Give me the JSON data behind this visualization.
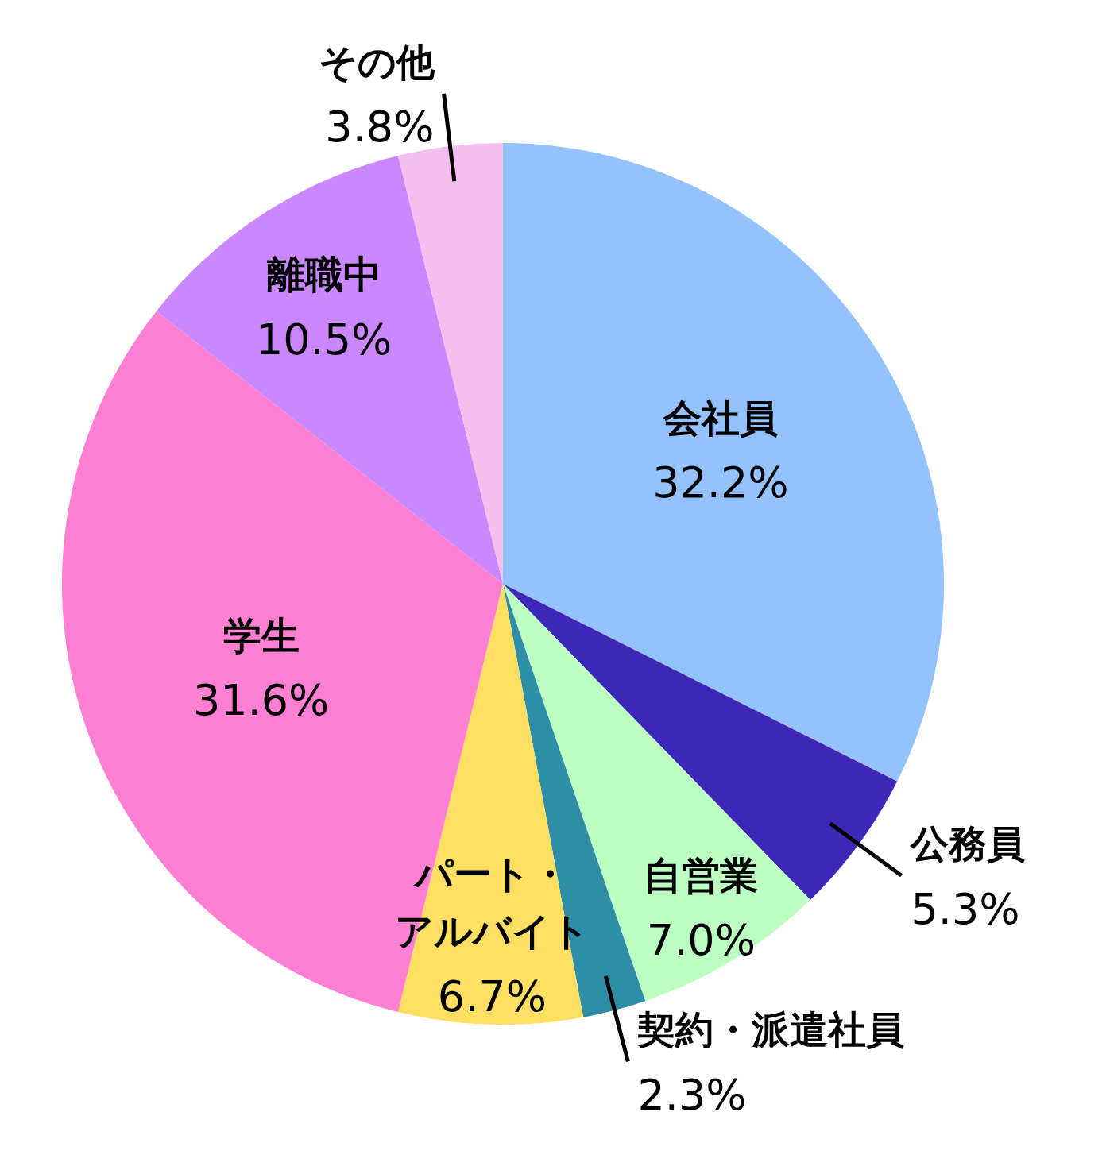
{
  "chart_data": {
    "type": "pie",
    "categories": [
      "会社員",
      "公務員",
      "自営業",
      "契約・派遣社員",
      "パート・アルバイト",
      "学生",
      "離職中",
      "その他"
    ],
    "values": [
      32.2,
      5.3,
      7.0,
      2.3,
      6.7,
      31.6,
      10.5,
      3.8
    ],
    "value_labels": [
      "32.2%",
      "5.3%",
      "7.0%",
      "2.3%",
      "6.7%",
      "31.6%",
      "10.5%",
      "3.8%"
    ],
    "colors": [
      "#93c2fd",
      "#3d27b9",
      "#bbffc3",
      "#2d8ea6",
      "#ffdf61",
      "#ff7fd3",
      "#cb87fe",
      "#f4bfee"
    ]
  }
}
